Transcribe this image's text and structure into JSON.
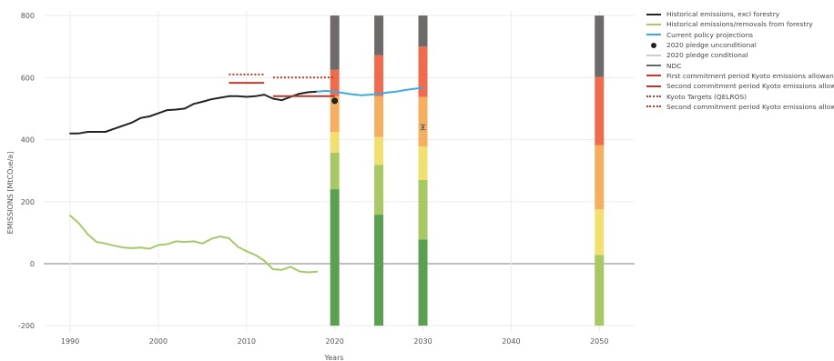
{
  "chart_data": {
    "type": "line",
    "xlabel": "Years",
    "ylabel": "EMISSIONS [MtCO₂e/a]",
    "xlim": [
      1987,
      2054
    ],
    "ylim": [
      -220,
      815
    ],
    "x_ticks": [
      1990,
      2000,
      2010,
      2020,
      2030,
      2040,
      2050
    ],
    "y_ticks": [
      -200,
      0,
      200,
      400,
      600,
      800
    ],
    "grid": true,
    "legend_position": "right",
    "series": [
      {
        "name": "Historical emissions, excl forestry",
        "kind": "line",
        "color": "#222222",
        "x": [
          1990,
          1991,
          1992,
          1993,
          1994,
          1995,
          1996,
          1997,
          1998,
          1999,
          2000,
          2001,
          2002,
          2003,
          2004,
          2005,
          2006,
          2007,
          2008,
          2009,
          2010,
          2011,
          2012,
          2013,
          2014,
          2015,
          2016,
          2017,
          2018
        ],
        "y": [
          420,
          420,
          425,
          425,
          425,
          435,
          445,
          455,
          470,
          475,
          485,
          495,
          497,
          500,
          515,
          522,
          530,
          535,
          540,
          540,
          538,
          540,
          545,
          532,
          527,
          538,
          548,
          553,
          555
        ]
      },
      {
        "name": "Historical emissions/removals from forestry",
        "kind": "line",
        "color": "#a6c96a",
        "x": [
          1990,
          1991,
          1992,
          1993,
          1994,
          1995,
          1996,
          1997,
          1998,
          1999,
          2000,
          2001,
          2002,
          2003,
          2004,
          2005,
          2006,
          2007,
          2008,
          2009,
          2010,
          2011,
          2012,
          2013,
          2014,
          2015,
          2016,
          2017,
          2018
        ],
        "y": [
          155,
          130,
          95,
          70,
          65,
          58,
          52,
          50,
          52,
          48,
          60,
          63,
          72,
          70,
          72,
          65,
          80,
          88,
          82,
          55,
          40,
          28,
          10,
          -18,
          -20,
          -10,
          -25,
          -28,
          -26
        ]
      },
      {
        "name": "Current policy projections",
        "kind": "line",
        "color": "#3ea9dc",
        "x": [
          2018,
          2019,
          2020,
          2021,
          2022,
          2023,
          2024,
          2025,
          2026,
          2027,
          2028,
          2029,
          2030
        ],
        "y": [
          555,
          557,
          555,
          550,
          546,
          543,
          545,
          548,
          552,
          555,
          560,
          564,
          567
        ]
      },
      {
        "name": "2020 pledge unconditional",
        "kind": "marker",
        "color": "#222222",
        "x": [
          2020
        ],
        "y": [
          525
        ]
      },
      {
        "name": "2020 pledge conditional",
        "kind": "line",
        "color": "#cccccc",
        "x": [],
        "y": []
      },
      {
        "name": "NDC",
        "kind": "errorbar",
        "color": "#666666",
        "x": [
          2030
        ],
        "y": [
          440
        ],
        "err": 8
      },
      {
        "name": "First commitment period Kyoto emissions allowances",
        "kind": "segment",
        "color": "#c0392b",
        "x": [
          2008,
          2012
        ],
        "y": [
          583,
          583
        ]
      },
      {
        "name": "Second commitment period Kyoto emissions allowances",
        "kind": "segment",
        "color": "#b03a2e",
        "x": [
          2013,
          2020
        ],
        "y": [
          540,
          540
        ]
      },
      {
        "name": "Kyoto Targets (QELROS)",
        "kind": "dotted",
        "color": "#b03a2e",
        "x": [
          2008,
          2012
        ],
        "y": [
          610,
          610
        ]
      },
      {
        "name": "Second commitment period Kyoto emissions allowances",
        "kind": "dotted",
        "color": "#b03a2e",
        "x": [
          2013,
          2020
        ],
        "y": [
          600,
          600
        ]
      }
    ],
    "stacked_bars": [
      {
        "x": 2020,
        "segments": [
          {
            "from": -200,
            "to": 240,
            "color": "#5ba050"
          },
          {
            "from": 240,
            "to": 358,
            "color": "#a8c866"
          },
          {
            "from": 358,
            "to": 425,
            "color": "#f0e070"
          },
          {
            "from": 425,
            "to": 540,
            "color": "#f4b060"
          },
          {
            "from": 540,
            "to": 625,
            "color": "#ef6b4d"
          },
          {
            "from": 625,
            "to": 800,
            "color": "#6e6a6a"
          }
        ]
      },
      {
        "x": 2025,
        "segments": [
          {
            "from": -200,
            "to": 158,
            "color": "#5ba050"
          },
          {
            "from": 158,
            "to": 318,
            "color": "#a8c866"
          },
          {
            "from": 318,
            "to": 408,
            "color": "#f0e070"
          },
          {
            "from": 408,
            "to": 540,
            "color": "#f4b060"
          },
          {
            "from": 540,
            "to": 672,
            "color": "#ef6b4d"
          },
          {
            "from": 672,
            "to": 800,
            "color": "#6e6a6a"
          }
        ]
      },
      {
        "x": 2030,
        "segments": [
          {
            "from": -200,
            "to": 78,
            "color": "#5ba050"
          },
          {
            "from": 78,
            "to": 270,
            "color": "#a8c866"
          },
          {
            "from": 270,
            "to": 378,
            "color": "#f0e070"
          },
          {
            "from": 378,
            "to": 538,
            "color": "#f4b060"
          },
          {
            "from": 538,
            "to": 700,
            "color": "#ef6b4d"
          },
          {
            "from": 700,
            "to": 800,
            "color": "#6e6a6a"
          }
        ]
      },
      {
        "x": 2050,
        "segments": [
          {
            "from": -200,
            "to": 28,
            "color": "#a8c866"
          },
          {
            "from": 28,
            "to": 175,
            "color": "#f0e070"
          },
          {
            "from": 175,
            "to": 382,
            "color": "#f4b060"
          },
          {
            "from": 382,
            "to": 602,
            "color": "#ef6b4d"
          },
          {
            "from": 602,
            "to": 800,
            "color": "#6e6a6a"
          }
        ]
      }
    ]
  }
}
